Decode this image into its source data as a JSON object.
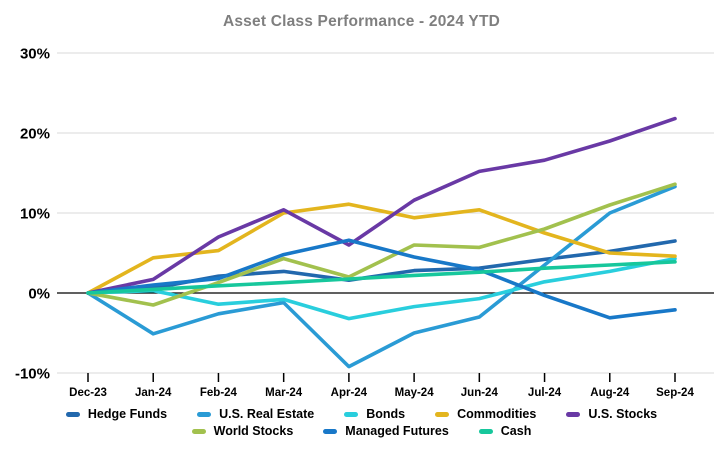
{
  "chart_data": {
    "type": "line",
    "title": "Asset Class Performance - 2024 YTD",
    "x_categories": [
      "Dec-23",
      "Jan-24",
      "Feb-24",
      "Mar-24",
      "Apr-24",
      "May-24",
      "Jun-24",
      "Jul-24",
      "Aug-24",
      "Sep-24"
    ],
    "ylim": [
      -10,
      30
    ],
    "yticks": [
      30,
      20,
      10,
      0,
      -10
    ],
    "ytick_labels": [
      "30%",
      "20%",
      "10%",
      "0%",
      "-10%"
    ],
    "grid": "horizontal-only",
    "zero_line": true,
    "legend_position": "bottom",
    "series": [
      {
        "name": "Hedge Funds",
        "color": "#2268ad",
        "values": [
          0,
          0.6,
          2.1,
          2.7,
          1.6,
          2.8,
          3.1,
          4.2,
          5.2,
          6.5
        ]
      },
      {
        "name": "U.S. Real Estate",
        "color": "#2a9bd5",
        "values": [
          0,
          -5.1,
          -2.6,
          -1.2,
          -9.2,
          -5.0,
          -3.0,
          3.5,
          10.0,
          13.3
        ]
      },
      {
        "name": "Bonds",
        "color": "#29cedd",
        "values": [
          0,
          0.3,
          -1.4,
          -0.8,
          -3.2,
          -1.7,
          -0.7,
          1.4,
          2.7,
          4.3
        ]
      },
      {
        "name": "Commodities",
        "color": "#e3b51e",
        "values": [
          0,
          4.4,
          5.3,
          10.0,
          11.1,
          9.4,
          10.4,
          7.5,
          5.0,
          4.6
        ]
      },
      {
        "name": "U.S. Stocks",
        "color": "#6939a5",
        "values": [
          0,
          1.7,
          7.0,
          10.4,
          6.0,
          11.6,
          15.2,
          16.6,
          19.0,
          21.8
        ]
      },
      {
        "name": "World Stocks",
        "color": "#a2c14e",
        "values": [
          0,
          -1.5,
          1.3,
          4.3,
          2.0,
          6.0,
          5.7,
          8.0,
          11.0,
          13.6
        ]
      },
      {
        "name": "Managed Futures",
        "color": "#1878c8",
        "values": [
          0,
          1.0,
          1.8,
          4.8,
          6.6,
          4.5,
          2.9,
          -0.3,
          -3.1,
          -2.1
        ]
      },
      {
        "name": "Cash",
        "color": "#17c79c",
        "values": [
          0,
          0.45,
          0.9,
          1.3,
          1.75,
          2.2,
          2.6,
          3.1,
          3.5,
          3.9
        ]
      }
    ],
    "legend_rows": [
      [
        "Hedge Funds",
        "U.S. Real Estate",
        "Bonds",
        "Commodities",
        "U.S. Stocks"
      ],
      [
        "World Stocks",
        "Managed Futures",
        "Cash"
      ]
    ]
  },
  "colors": {
    "title_text": "#7f7f7f",
    "gridline": "#d8d8d8",
    "zero_line": "#000000",
    "axis_tick": "#000000",
    "background": "#ffffff"
  }
}
